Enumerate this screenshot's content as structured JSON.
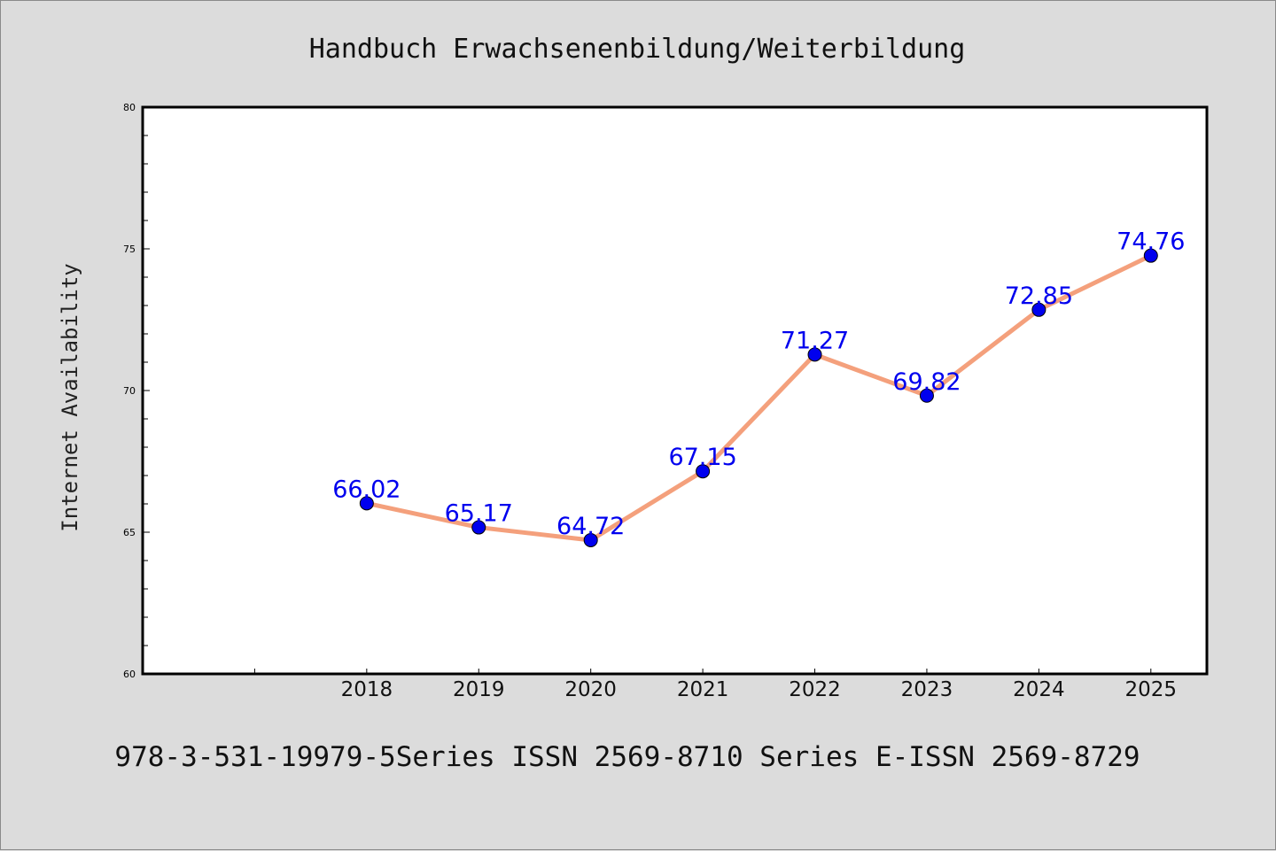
{
  "chart_data": {
    "type": "line",
    "title": "Handbuch Erwachsenenbildung/Weiterbildung",
    "ylabel": "Internet Availability",
    "xlabel": "",
    "footer": "978-3-531-19979-5Series ISSN 2569-8710 Series E-ISSN 2569-8729",
    "x": [
      "2018",
      "2019",
      "2020",
      "2021",
      "2022",
      "2023",
      "2024",
      "2025"
    ],
    "x_visible_range": [
      2016,
      2025.5
    ],
    "series": [
      {
        "values": [
          66.02,
          65.17,
          64.72,
          67.15,
          71.27,
          69.82,
          72.85,
          74.76
        ],
        "data_labels": [
          "66.02",
          "65.17",
          "64.72",
          "67.15",
          "71.27",
          "69.82",
          "72.85",
          "74.76"
        ],
        "line_color": "#f4a07c",
        "marker_color": "#0000ee",
        "label_color": "#0000ee"
      }
    ],
    "ylim": [
      60,
      80
    ],
    "yticks": [
      "60",
      "65",
      "70",
      "75",
      "80"
    ],
    "grid": false,
    "legend": "none"
  }
}
